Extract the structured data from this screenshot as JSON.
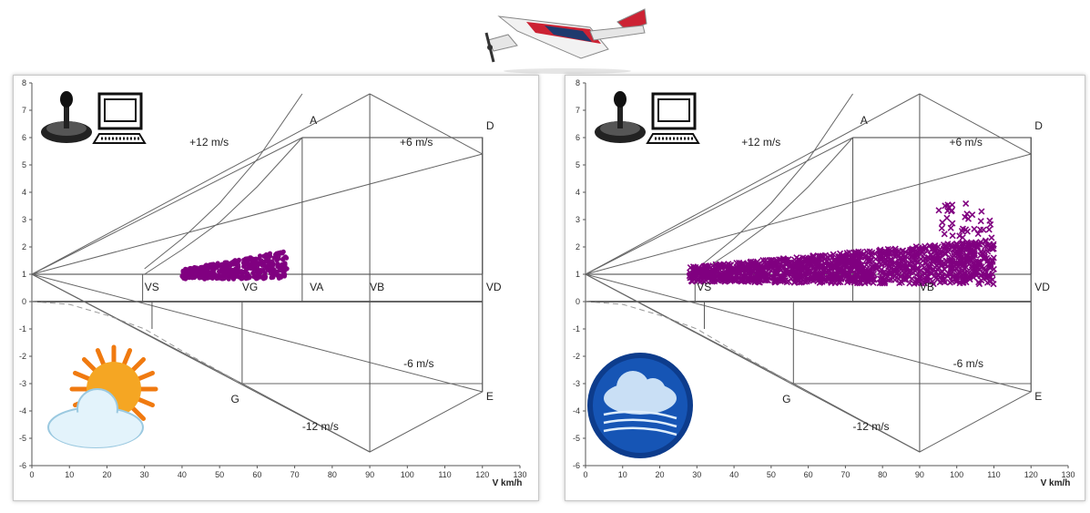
{
  "chart_data": [
    {
      "type": "line",
      "title": "",
      "xlabel": "V km/h",
      "ylabel": "",
      "xlim": [
        0,
        130
      ],
      "ylim": [
        -6,
        8
      ],
      "x_ticks": [
        0,
        10,
        20,
        30,
        40,
        50,
        60,
        70,
        80,
        90,
        100,
        110,
        120,
        130
      ],
      "y_ticks": [
        -6,
        -5,
        -4,
        -3,
        -2,
        -1,
        0,
        1,
        2,
        3,
        4,
        5,
        6,
        7,
        8
      ],
      "grid": false,
      "series": [
        {
          "id": "envelope-top",
          "values": [
            [
              72,
              6
            ],
            [
              120,
              6
            ],
            [
              120,
              1
            ]
          ]
        },
        {
          "id": "envelope-bottom",
          "values": [
            [
              56,
              -3
            ],
            [
              120,
              -3
            ]
          ]
        },
        {
          "id": "diamond",
          "values": [
            [
              90,
              7.6
            ],
            [
              120,
              5.4
            ],
            [
              120,
              -3.3
            ],
            [
              90,
              -5.5
            ],
            [
              56,
              -3
            ],
            [
              0,
              1
            ],
            [
              90,
              7.6
            ]
          ]
        },
        {
          "id": "gust-12-pos",
          "values": [
            [
              0,
              1
            ],
            [
              72,
              6
            ]
          ]
        },
        {
          "id": "gust-6-pos",
          "values": [
            [
              0,
              1
            ],
            [
              120,
              5.4
            ]
          ]
        },
        {
          "id": "gust-6-neg",
          "values": [
            [
              0,
              1
            ],
            [
              120,
              -3.3
            ]
          ]
        },
        {
          "id": "gust-12-neg",
          "values": [
            [
              0,
              1
            ],
            [
              90,
              -5.5
            ]
          ]
        },
        {
          "id": "load-1g",
          "values": [
            [
              0,
              1
            ],
            [
              120,
              1
            ]
          ]
        },
        {
          "id": "stall-curve-pos",
          "values": [
            [
              30,
              1
            ],
            [
              40,
              1.9
            ],
            [
              50,
              2.9
            ],
            [
              60,
              4.2
            ],
            [
              72,
              6
            ]
          ]
        },
        {
          "id": "stall-curve-max",
          "values": [
            [
              30,
              1.2
            ],
            [
              40,
              2.3
            ],
            [
              50,
              3.6
            ],
            [
              60,
              5.2
            ],
            [
              72,
              7.6
            ]
          ]
        },
        {
          "id": "stall-curve-neg",
          "values": [
            [
              0,
              0
            ],
            [
              10,
              -0.1
            ],
            [
              20,
              -0.5
            ],
            [
              30,
              -1
            ],
            [
              40,
              -1.8
            ],
            [
              56,
              -3
            ]
          ]
        }
      ],
      "markers": [
        {
          "id": "VS-pos",
          "x": 29.5,
          "values": [
            0,
            1
          ]
        },
        {
          "id": "VS-neg",
          "x": 32,
          "values": [
            0,
            -1
          ]
        },
        {
          "id": "VA",
          "x": 72,
          "values": [
            0,
            6
          ]
        },
        {
          "id": "VG",
          "x": 56,
          "values": [
            0,
            -3
          ]
        },
        {
          "id": "VB",
          "x": 90,
          "values": [
            -5.5,
            7.6
          ]
        },
        {
          "id": "VD",
          "x": 120,
          "values": [
            -3.3,
            6
          ]
        }
      ],
      "point_labels": [
        {
          "text": "A",
          "x": 74,
          "y": 6.5
        },
        {
          "text": "D",
          "x": 121,
          "y": 6.3
        },
        {
          "text": "E",
          "x": 121,
          "y": -3.6
        },
        {
          "text": "G",
          "x": 53,
          "y": -3.7
        },
        {
          "text": "+12 m/s",
          "x": 42,
          "y": 5.7
        },
        {
          "text": "+6 m/s",
          "x": 98,
          "y": 5.7
        },
        {
          "text": "-6 m/s",
          "x": 99,
          "y": -2.4
        },
        {
          "text": "-12 m/s",
          "x": 72,
          "y": -4.7
        },
        {
          "text": "VS",
          "x": 30,
          "y": 0.4
        },
        {
          "text": "VG",
          "x": 56,
          "y": 0.4
        },
        {
          "text": "VA",
          "x": 74,
          "y": 0.4
        },
        {
          "text": "VB",
          "x": 90,
          "y": 0.4
        },
        {
          "text": "VD",
          "x": 121,
          "y": 0.4
        }
      ],
      "scatter": {
        "marker": "dot",
        "color": "#800080",
        "x_range": [
          40,
          68
        ],
        "y_range": [
          0.8,
          2.1
        ]
      }
    },
    {
      "type": "line",
      "title": "",
      "xlabel": "V km/h",
      "ylabel": "",
      "xlim": [
        0,
        130
      ],
      "ylim": [
        -6,
        8
      ],
      "x_ticks": [
        0,
        10,
        20,
        30,
        40,
        50,
        60,
        70,
        80,
        90,
        100,
        110,
        120,
        130
      ],
      "y_ticks": [
        -6,
        -5,
        -4,
        -3,
        -2,
        -1,
        0,
        1,
        2,
        3,
        4,
        5,
        6,
        7,
        8
      ],
      "grid": false,
      "series": [
        {
          "id": "envelope-top",
          "values": [
            [
              72,
              6
            ],
            [
              120,
              6
            ],
            [
              120,
              1
            ]
          ]
        },
        {
          "id": "envelope-bottom",
          "values": [
            [
              56,
              -3
            ],
            [
              120,
              -3
            ]
          ]
        },
        {
          "id": "diamond",
          "values": [
            [
              90,
              7.6
            ],
            [
              120,
              5.4
            ],
            [
              120,
              -3.3
            ],
            [
              90,
              -5.5
            ],
            [
              56,
              -3
            ],
            [
              0,
              1
            ],
            [
              90,
              7.6
            ]
          ]
        },
        {
          "id": "gust-12-pos",
          "values": [
            [
              0,
              1
            ],
            [
              72,
              6
            ]
          ]
        },
        {
          "id": "gust-6-pos",
          "values": [
            [
              0,
              1
            ],
            [
              120,
              5.4
            ]
          ]
        },
        {
          "id": "gust-6-neg",
          "values": [
            [
              0,
              1
            ],
            [
              120,
              -3.3
            ]
          ]
        },
        {
          "id": "gust-12-neg",
          "values": [
            [
              0,
              1
            ],
            [
              90,
              -5.5
            ]
          ]
        },
        {
          "id": "load-1g",
          "values": [
            [
              0,
              1
            ],
            [
              120,
              1
            ]
          ]
        },
        {
          "id": "stall-curve-pos",
          "values": [
            [
              30,
              1
            ],
            [
              40,
              1.9
            ],
            [
              50,
              2.9
            ],
            [
              60,
              4.2
            ],
            [
              72,
              6
            ]
          ]
        },
        {
          "id": "stall-curve-max",
          "values": [
            [
              30,
              1.2
            ],
            [
              40,
              2.3
            ],
            [
              50,
              3.6
            ],
            [
              60,
              5.2
            ],
            [
              72,
              7.6
            ]
          ]
        },
        {
          "id": "stall-curve-neg",
          "values": [
            [
              0,
              0
            ],
            [
              10,
              -0.1
            ],
            [
              20,
              -0.5
            ],
            [
              30,
              -1
            ],
            [
              40,
              -1.8
            ],
            [
              56,
              -3
            ]
          ]
        }
      ],
      "markers": [
        {
          "id": "VS-pos",
          "x": 29.5,
          "values": [
            0,
            1
          ]
        },
        {
          "id": "VS-neg",
          "x": 32,
          "values": [
            0,
            -1
          ]
        },
        {
          "id": "VA",
          "x": 72,
          "values": [
            0,
            6
          ]
        },
        {
          "id": "VG",
          "x": 56,
          "values": [
            0,
            -3
          ]
        },
        {
          "id": "VB",
          "x": 90,
          "values": [
            -5.5,
            7.6
          ]
        },
        {
          "id": "VD",
          "x": 120,
          "values": [
            -3.3,
            6
          ]
        }
      ],
      "point_labels": [
        {
          "text": "A",
          "x": 74,
          "y": 6.5
        },
        {
          "text": "D",
          "x": 121,
          "y": 6.3
        },
        {
          "text": "E",
          "x": 121,
          "y": -3.6
        },
        {
          "text": "G",
          "x": 53,
          "y": -3.7
        },
        {
          "text": "+12 m/s",
          "x": 42,
          "y": 5.7
        },
        {
          "text": "+6 m/s",
          "x": 98,
          "y": 5.7
        },
        {
          "text": "-6 m/s",
          "x": 99,
          "y": -2.4
        },
        {
          "text": "-12 m/s",
          "x": 72,
          "y": -4.7
        },
        {
          "text": "VS",
          "x": 30,
          "y": 0.4
        },
        {
          "text": "VB",
          "x": 90,
          "y": 0.4
        },
        {
          "text": "VD",
          "x": 121,
          "y": 0.4
        }
      ],
      "scatter": {
        "marker": "x",
        "color": "#800080",
        "x_range": [
          28,
          110
        ],
        "y_range": [
          0.3,
          3.6
        ]
      }
    }
  ],
  "icons": {
    "left": [
      "joystick-icon",
      "computer-icon",
      "sun-cloud-icon"
    ],
    "right": [
      "joystick-icon",
      "computer-icon",
      "wind-cloud-icon"
    ],
    "top": "airplane-icon"
  }
}
